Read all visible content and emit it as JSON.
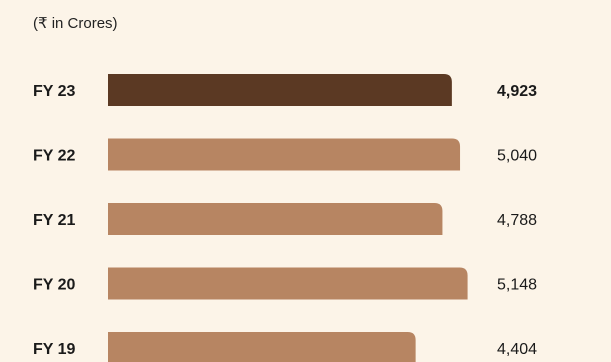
{
  "unit_note": "(₹ in Crores)",
  "colors": {
    "background": "#fcf4e8",
    "highlight_bar": "#5b3923",
    "bar": "#b78562"
  },
  "chart_data": {
    "type": "bar",
    "orientation": "horizontal",
    "categories": [
      "FY 23",
      "FY 22",
      "FY 21",
      "FY 20",
      "FY 19"
    ],
    "values": [
      4923,
      5040,
      4788,
      5148,
      4404
    ],
    "value_labels": [
      "4,923",
      "5,040",
      "4,788",
      "5,148",
      "4,404"
    ],
    "highlight_index": 0,
    "title": "",
    "xlabel": "",
    "ylabel": "",
    "grid": false,
    "legend": "none"
  }
}
